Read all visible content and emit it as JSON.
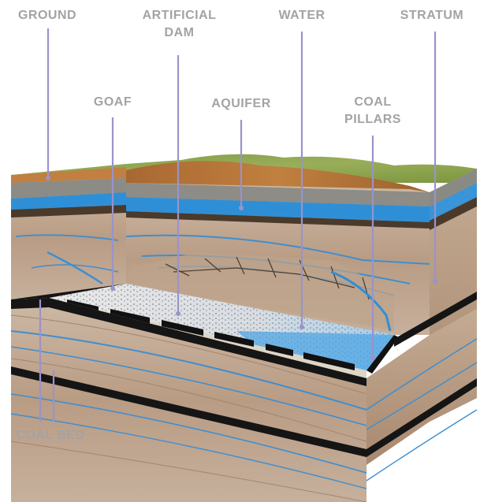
{
  "labels": {
    "ground": "GROUND",
    "artificial_dam_line1": "ARTIFICIAL",
    "artificial_dam_line2": "DAM",
    "water": "WATER",
    "stratum": "STRATUM",
    "goaf": "GOAF",
    "aquifer": "AQUIFER",
    "coal_pillars_line1": "COAL",
    "coal_pillars_line2": "PILLARS",
    "coal_bed": "COAL BED"
  },
  "colors": {
    "label_text": "#a3a3a3",
    "leader_line": "#9a93c9",
    "grass": "#8aa14c",
    "soil": "#b6743a",
    "aquifer": "#2f8fd6",
    "rock": "#c8b4a0",
    "coal": "#1a1a1a",
    "goaf_fill": "#e6e6e6"
  }
}
